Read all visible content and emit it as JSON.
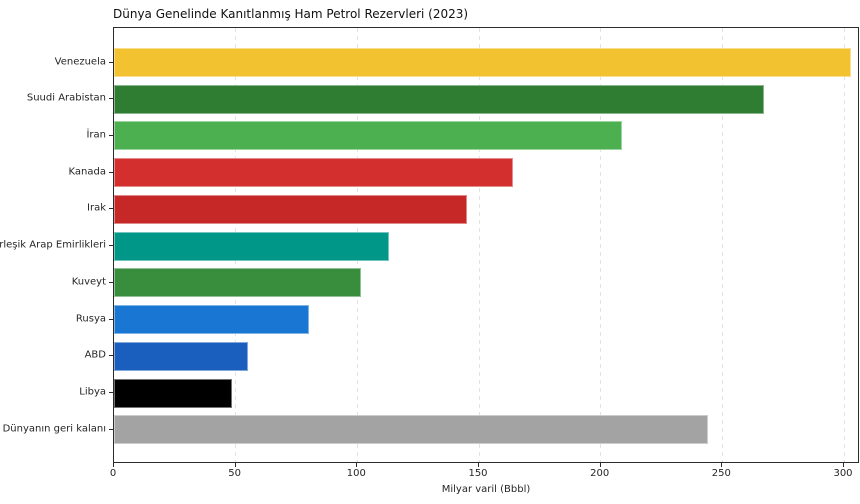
{
  "chart_data": {
    "type": "bar",
    "orientation": "horizontal",
    "title": "Dünya Genelinde Kanıtlanmış Ham Petrol Rezervleri (2023)",
    "xlabel": "Milyar varil (Bbbl)",
    "ylabel": "",
    "categories": [
      "Venezuela",
      "Suudi Arabistan",
      "İran",
      "Kanada",
      "Irak",
      "Birleşik Arap Emirlikleri",
      "Kuveyt",
      "Rusya",
      "ABD",
      "Libya",
      "Dünyanın geri kalanı"
    ],
    "values": [
      303,
      267,
      208.6,
      164,
      145,
      113,
      101.5,
      80,
      55,
      48.4,
      244
    ],
    "bar_colors": [
      "#F2C230",
      "#2E7D32",
      "#4CAF50",
      "#D32F2F",
      "#C62828",
      "#009688",
      "#388E3C",
      "#1976D2",
      "#1A5FBE",
      "#000000",
      "#A3A3A3"
    ],
    "x_ticks": [
      0,
      50,
      100,
      150,
      200,
      250,
      300
    ],
    "xlim": [
      0,
      306.6
    ],
    "grid": "vertical-dashed",
    "legend": "none",
    "background_color": "#ffffff",
    "grid_color": "#e2e2e2",
    "spine_color": "#2b2b2b"
  }
}
